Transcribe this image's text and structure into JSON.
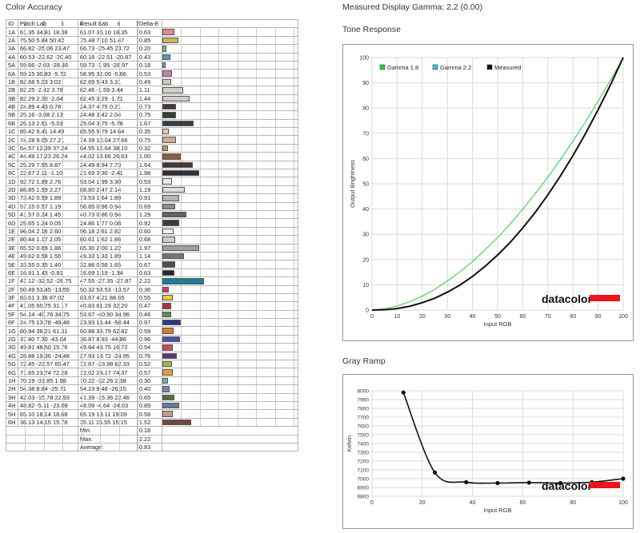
{
  "titles": {
    "color_accuracy": "Color Accuracy",
    "measured_gamma": "Measured Display Gamma: 2.2 (0.00)",
    "tone_response": "Tone Response",
    "gray_ramp": "Gray Ramp"
  },
  "table": {
    "headers": [
      "ID",
      "Patch Lab",
      "Result Lab",
      "Delta-E"
    ],
    "scale_ticks": [
      "1",
      "2",
      "3",
      "4",
      "5",
      "6",
      "7"
    ],
    "rows": [
      {
        "id": "1A",
        "patch": "61.35  34.81  18.38",
        "result": "61.07  36.10  18.35",
        "de": "0.63",
        "color": "#e0888c"
      },
      {
        "id": "2A",
        "patch": "75.50   5.84  50.42",
        "result": "75.48   7.10  51.47",
        "de": "0.85",
        "color": "#d9b260"
      },
      {
        "id": "3A",
        "patch": "66.82 -25.06  23.47",
        "result": "66.73 -25.45  23.72",
        "de": "0.20",
        "color": "#85b77a"
      },
      {
        "id": "4A",
        "patch": "60.53 -22.62 -20.40",
        "result": "60.16 -22.51 -20.87",
        "de": "0.43",
        "color": "#4aa0b5"
      },
      {
        "id": "5A",
        "patch": "59.66  -2.03 -28.46",
        "result": "59.73  -1.95 -28.97",
        "de": "0.18",
        "color": "#7f93c8"
      },
      {
        "id": "6A",
        "patch": "59.15  30.83  -5.72",
        "result": "58.95  32.00  -5.66",
        "de": "0.53",
        "color": "#c47fb0"
      },
      {
        "id": "1B",
        "patch": "82.68   5.03   3.02",
        "result": "82.69   5.43   3.31",
        "de": "0.49",
        "color": "#d9c8c4"
      },
      {
        "id": "2B",
        "patch": "82.25  -2.42   3.78",
        "result": "82.46  -1.59   3.44",
        "de": "1.11",
        "color": "#cfd0c6"
      },
      {
        "id": "3B",
        "patch": "82.29   2.20  -2.04",
        "result": "82.45   3.29  -1.71",
        "de": "1.44",
        "color": "#d2ccd3"
      },
      {
        "id": "4B",
        "patch": "24.89   4.43   0.78",
        "result": "24.37   4.75   0.21",
        "de": "0.73",
        "color": "#45393a"
      },
      {
        "id": "5B",
        "patch": "25.16  -3.88   2.13",
        "result": "24.48   3.42   2.04",
        "de": "0.75",
        "color": "#363f38"
      },
      {
        "id": "6B",
        "patch": "26.13   2.61  -5.03",
        "result": "25.04   3.75  -5.78",
        "de": "1.67",
        "color": "#3a3b46"
      },
      {
        "id": "1C",
        "patch": "85.42   9.41  14.49",
        "result": "85.55   9.79  14.64",
        "de": "0.35",
        "color": "#eacbbb"
      },
      {
        "id": "2C",
        "patch": "74.28   9.05  27.21",
        "result": "74.39  10.04  27.66",
        "de": "0.75",
        "color": "#d2af8a"
      },
      {
        "id": "3C",
        "patch": "64.57  12.39  37.24",
        "result": "64.55  12.64  38.10",
        "de": "0.32",
        "color": "#c29860"
      },
      {
        "id": "4C",
        "patch": "44.49  17.23  26.24",
        "result": "44.02  18.66  26.63",
        "de": "1.00",
        "color": "#8a6040"
      },
      {
        "id": "5C",
        "patch": "25.29   7.95   8.87",
        "result": "24.49   8.94   7.73",
        "de": "1.64",
        "color": "#4a3530"
      },
      {
        "id": "6C",
        "patch": "22.67   2.11  -1.10",
        "result": "21.69   3.30  -2.41",
        "de": "1.98",
        "color": "#353033"
      },
      {
        "id": "1D",
        "patch": "92.72   1.89   2.76",
        "result": "93.04   1.99   3.30",
        "de": "0.53",
        "color": "#ece8e4"
      },
      {
        "id": "2D",
        "patch": "88.85   1.59   2.27",
        "result": "88.80   2.47   2.14",
        "de": "1.19",
        "color": "#e0dcd8"
      },
      {
        "id": "3D",
        "patch": "73.42   0.99   1.89",
        "result": "73.53   1.64   1.89",
        "de": "0.91",
        "color": "#b7b4b0"
      },
      {
        "id": "4D",
        "patch": "57.15   0.57   1.19",
        "result": "56.85   0.96   0.94",
        "de": "0.69",
        "color": "#8d8b89"
      },
      {
        "id": "5D",
        "patch": "41.57   0.24   1.45",
        "result": "40.73   0.86   0.94",
        "de": "1.29",
        "color": "#646260"
      },
      {
        "id": "6D",
        "patch": "25.65   1.24   0.05",
        "result": "24.86   1.77   0.08",
        "de": "0.92",
        "color": "#3d3b3b"
      },
      {
        "id": "1E",
        "patch": "96.04   2.16   2.60",
        "result": "96.18   2.61   2.82",
        "de": "0.60",
        "color": "#f6f1ee"
      },
      {
        "id": "2E",
        "patch": "80.44   1.17   2.05",
        "result": "80.61   1.62   1.86",
        "de": "0.68",
        "color": "#cecbc8"
      },
      {
        "id": "3E",
        "patch": "65.52   0.69   1.86",
        "result": "65.30   2.00   1.22",
        "de": "1.97",
        "color": "#a29f9c"
      },
      {
        "id": "4E",
        "patch": "49.62   0.58   1.56",
        "result": "49.33   1.33   1.89",
        "de": "1.14",
        "color": "#787673"
      },
      {
        "id": "5E",
        "patch": "33.55   0.35   1.40",
        "result": "32.86   0.56   1.65",
        "de": "0.67",
        "color": "#504e4c"
      },
      {
        "id": "6E",
        "patch": "16.91   1.43  -0.81",
        "result": "16.69   1.19  -1.34",
        "de": "0.63",
        "color": "#2a2829"
      },
      {
        "id": "1F",
        "patch": "47.12 -32.52 -28.75",
        "result": "47.55 -27.35 -27.87",
        "de": "2.22",
        "color": "#177f98"
      },
      {
        "id": "2F",
        "patch": "50.49  53.45 -13.55",
        "result": "50.32  54.53 -13.57",
        "de": "0.36",
        "color": "#c53b87"
      },
      {
        "id": "3F",
        "patch": "83.61   3.36  87.02",
        "result": "83.67   4.21  88.65",
        "de": "0.55",
        "color": "#eccd25"
      },
      {
        "id": "4F",
        "patch": "41.05  60.75  31.17",
        "result": "40.83  61.29  32.20",
        "de": "0.47",
        "color": "#b3313a"
      },
      {
        "id": "5F",
        "patch": "54.14 -40.76  34.75",
        "result": "53.67 -40.90  34.96",
        "de": "0.46",
        "color": "#4f9848"
      },
      {
        "id": "6F",
        "patch": "24.75  13.78 -49.48",
        "result": "23.93  15.44 -50.44",
        "de": "0.97",
        "color": "#243b82"
      },
      {
        "id": "1G",
        "patch": "60.94  38.21  61.31",
        "result": "60.88  39.79  62.82",
        "de": "0.59",
        "color": "#dc7a2e"
      },
      {
        "id": "2G",
        "patch": "37.80   7.30 -43.04",
        "result": "36.87   8.93 -44.86",
        "de": "0.96",
        "color": "#4c56a4"
      },
      {
        "id": "3G",
        "patch": "49.81  48.50  15.76",
        "result": "49.84  49.75  16.72",
        "de": "0.54",
        "color": "#c34f60"
      },
      {
        "id": "4G",
        "patch": "28.88  19.36 -24.48",
        "result": "27.93  19.72 -24.95",
        "de": "0.76",
        "color": "#5c3a6b"
      },
      {
        "id": "5G",
        "patch": "72.45 -23.57  60.47",
        "result": "72.67 -23.98  62.33",
        "de": "0.52",
        "color": "#9dbb42"
      },
      {
        "id": "6G",
        "patch": "71.65  23.74  72.28",
        "result": "72.02  24.17  74.37",
        "de": "0.57",
        "color": "#e99e2f"
      },
      {
        "id": "1H",
        "patch": "70.19 -31.85   1.98",
        "result": "70.22 -32.26   2.38",
        "de": "0.30",
        "color": "#63be9e"
      },
      {
        "id": "2H",
        "patch": "54.38   8.84 -25.71",
        "result": "54.23   9.48 -26.15",
        "de": "0.40",
        "color": "#7f82b2"
      },
      {
        "id": "3H",
        "patch": "42.03 -15.78  22.93",
        "result": "41.39 -15.36  22.46",
        "de": "0.65",
        "color": "#5a6f45"
      },
      {
        "id": "4H",
        "patch": "48.82  -5.11 -23.08",
        "result": "48.09  -4.64 -24.03",
        "de": "0.89",
        "color": "#5f7c9f"
      },
      {
        "id": "5H",
        "patch": "65.10  18.14  18.68",
        "result": "65.19  19.11  19.09",
        "de": "0.58",
        "color": "#c59b8c"
      },
      {
        "id": "6H",
        "patch": "36.13  14.15  15.78",
        "result": "35.11  15.55  15.15",
        "de": "1.52",
        "color": "#6e4a3e"
      }
    ],
    "summary": [
      {
        "label": "Min:",
        "value": "0.18"
      },
      {
        "label": "Max:",
        "value": "2.22"
      },
      {
        "label": "Average:",
        "value": "0.83"
      }
    ]
  },
  "chart_data": [
    {
      "type": "line",
      "title": "Tone Response",
      "xlabel": "Input RGB",
      "ylabel": "Output Brightness",
      "xlim": [
        0,
        100
      ],
      "ylim": [
        0,
        100
      ],
      "x_ticks": [
        0,
        10,
        20,
        30,
        40,
        50,
        60,
        70,
        80,
        90,
        100
      ],
      "y_ticks": [
        0,
        10,
        20,
        30,
        40,
        50,
        60,
        70,
        80,
        90,
        100
      ],
      "legend": "top-left",
      "x": [
        0,
        5,
        10,
        15,
        20,
        25,
        30,
        35,
        40,
        45,
        50,
        55,
        60,
        65,
        70,
        75,
        80,
        85,
        90,
        95,
        100
      ],
      "series": [
        {
          "name": "Gamma 1.8",
          "color": "#2ecc40",
          "values": [
            0,
            0.5,
            1.6,
            3.3,
            5.5,
            8.2,
            11.5,
            15.1,
            19.2,
            23.8,
            28.7,
            34.1,
            39.9,
            46.1,
            52.6,
            59.6,
            66.9,
            74.6,
            82.7,
            91.1,
            100
          ]
        },
        {
          "name": "Gamma 2.2",
          "color": "#35c8c8",
          "values": [
            0,
            0.1,
            0.6,
            1.5,
            2.9,
            4.7,
            7.1,
            9.9,
            13.3,
            17.3,
            21.8,
            26.8,
            32.5,
            38.7,
            45.6,
            53.1,
            61.2,
            69.9,
            79.3,
            89.3,
            100
          ]
        },
        {
          "name": "Measured",
          "color": "#111111",
          "values": [
            0,
            0.1,
            0.6,
            1.5,
            2.9,
            4.7,
            7.1,
            9.9,
            13.3,
            17.3,
            21.8,
            26.8,
            32.5,
            38.7,
            45.6,
            53.1,
            61.2,
            69.9,
            79.3,
            89.3,
            100
          ]
        }
      ],
      "watermark": "datacolor"
    },
    {
      "type": "line",
      "title": "Gray Ramp",
      "xlabel": "Input RGB",
      "ylabel": "Kelvin",
      "xlim": [
        0,
        100
      ],
      "ylim": [
        6800,
        8000
      ],
      "x_ticks": [
        0,
        20,
        40,
        60,
        80,
        100
      ],
      "y_ticks": [
        6800,
        6900,
        7000,
        7100,
        7200,
        7300,
        7400,
        7500,
        7600,
        7700,
        7800,
        7900,
        8000
      ],
      "x": [
        12.5,
        25,
        37.5,
        50,
        62.5,
        75,
        87.5,
        100
      ],
      "series": [
        {
          "name": "",
          "color": "#111111",
          "values": [
            7980,
            7070,
            6960,
            6950,
            6955,
            6950,
            6960,
            7000
          ]
        }
      ],
      "watermark": "datacolor"
    }
  ]
}
